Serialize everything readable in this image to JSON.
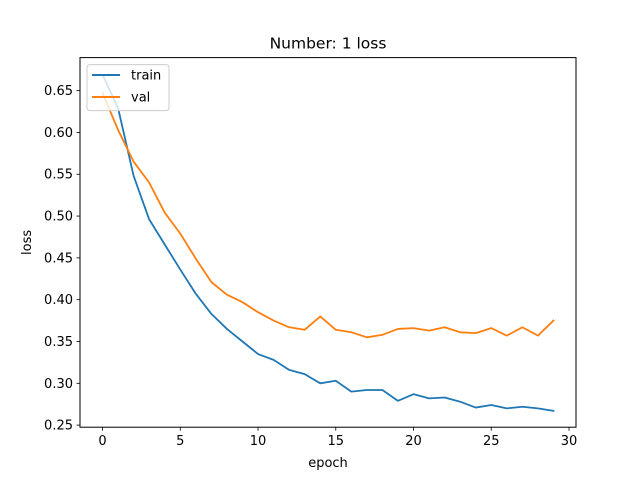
{
  "chart_data": {
    "type": "line",
    "title": "Number: 1 loss",
    "xlabel": "epoch",
    "ylabel": "loss",
    "xlim": [
      -1.45,
      30.45
    ],
    "ylim": [
      0.2475,
      0.6895
    ],
    "xticks": [
      0,
      5,
      10,
      15,
      20,
      25,
      30
    ],
    "xtick_labels": [
      "0",
      "5",
      "10",
      "15",
      "20",
      "25",
      "30"
    ],
    "yticks": [
      0.25,
      0.3,
      0.35,
      0.4,
      0.45,
      0.5,
      0.55,
      0.6,
      0.65
    ],
    "ytick_labels": [
      "0.25",
      "0.30",
      "0.35",
      "0.40",
      "0.45",
      "0.50",
      "0.55",
      "0.60",
      "0.65"
    ],
    "grid": false,
    "legend_position": "upper-left",
    "x": [
      0,
      1,
      2,
      3,
      4,
      5,
      6,
      7,
      8,
      9,
      10,
      11,
      12,
      13,
      14,
      15,
      16,
      17,
      18,
      19,
      20,
      21,
      22,
      23,
      24,
      25,
      26,
      27,
      28,
      29
    ],
    "series": [
      {
        "name": "train",
        "color": "#1f77b4",
        "values": [
          0.669,
          0.629,
          0.548,
          0.496,
          0.466,
          0.436,
          0.407,
          0.383,
          0.365,
          0.35,
          0.335,
          0.328,
          0.316,
          0.311,
          0.3,
          0.303,
          0.29,
          0.292,
          0.292,
          0.279,
          0.287,
          0.282,
          0.283,
          0.278,
          0.271,
          0.274,
          0.27,
          0.272,
          0.27,
          0.267
        ]
      },
      {
        "name": "val",
        "color": "#ff7f0e",
        "values": [
          0.647,
          0.603,
          0.565,
          0.54,
          0.504,
          0.479,
          0.449,
          0.421,
          0.406,
          0.397,
          0.385,
          0.375,
          0.367,
          0.364,
          0.38,
          0.364,
          0.361,
          0.355,
          0.358,
          0.365,
          0.366,
          0.363,
          0.367,
          0.361,
          0.36,
          0.366,
          0.357,
          0.367,
          0.357,
          0.375
        ]
      }
    ]
  }
}
